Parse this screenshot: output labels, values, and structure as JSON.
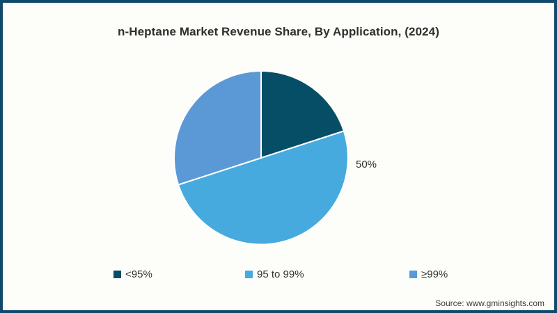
{
  "chart_data": {
    "type": "pie",
    "title": "n-Heptane Market Revenue Share, By Application, (2024)",
    "categories": [
      "<95%",
      "95 to 99%",
      "≥99%"
    ],
    "values": [
      20,
      50,
      30
    ],
    "colors": [
      "#054e65",
      "#47aade",
      "#5b99d6"
    ],
    "data_labels": [
      "",
      "50%",
      ""
    ],
    "start_angle_deg": 0,
    "direction": "clockwise",
    "legend_position": "bottom",
    "slice_border_color": "#ffffff"
  },
  "source": "Source: www.gminsights.com",
  "frame": {
    "border_color": "#11496a",
    "background": "#fdfdf9"
  }
}
